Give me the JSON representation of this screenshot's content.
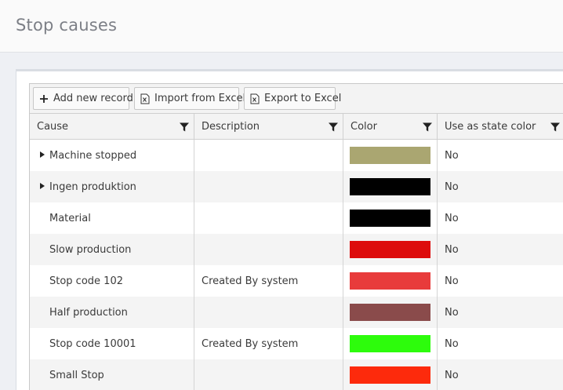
{
  "page": {
    "title": "Stop causes"
  },
  "toolbar": {
    "add_label": "Add new record",
    "import_label": "Import from Excel",
    "export_label": "Export to Excel"
  },
  "columns": {
    "cause": "Cause",
    "description": "Description",
    "color": "Color",
    "state": "Use as state color"
  },
  "rows": [
    {
      "cause": "Machine stopped",
      "description": "",
      "color": "#aaa671",
      "state": "No",
      "expandable": true
    },
    {
      "cause": "Ingen produktion",
      "description": "",
      "color": "#000000",
      "state": "No",
      "expandable": true
    },
    {
      "cause": "Material",
      "description": "",
      "color": "#000000",
      "state": "No",
      "expandable": false
    },
    {
      "cause": "Slow production",
      "description": "",
      "color": "#dd0c0c",
      "state": "No",
      "expandable": false
    },
    {
      "cause": "Stop code 102",
      "description": "Created By system",
      "color": "#e83b3b",
      "state": "No",
      "expandable": false
    },
    {
      "cause": "Half production",
      "description": "",
      "color": "#8a4b4b",
      "state": "No",
      "expandable": false
    },
    {
      "cause": "Stop code 10001",
      "description": "Created By system",
      "color": "#2dfc0c",
      "state": "No",
      "expandable": false
    },
    {
      "cause": "Small Stop",
      "description": "",
      "color": "#fd2a0c",
      "state": "No",
      "expandable": false
    }
  ]
}
